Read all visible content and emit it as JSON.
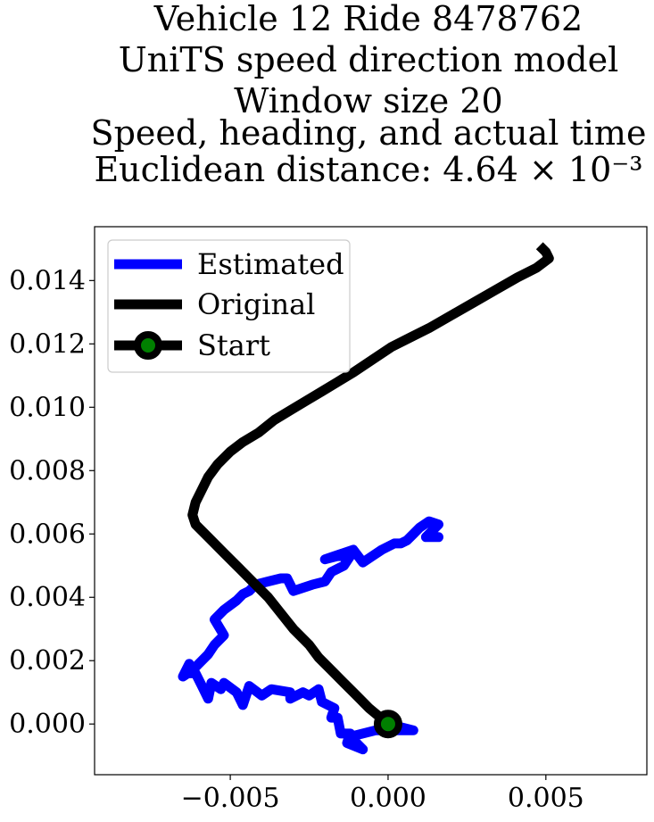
{
  "chart_data": {
    "type": "line",
    "title_lines": [
      "Vehicle 12 Ride 8478762",
      "UniTS speed direction model",
      "Window size 20",
      "Speed, heading, and actual time",
      "Euclidean distance: 4.64 × 10⁻³"
    ],
    "xlabel": "",
    "ylabel": "",
    "xlim": [
      -0.0093,
      0.0082
    ],
    "ylim": [
      -0.0016,
      0.0157
    ],
    "x_ticks": [
      -0.005,
      0.0,
      0.005
    ],
    "x_tick_labels": [
      "−0.005",
      "0.000",
      "0.005"
    ],
    "y_ticks": [
      0.0,
      0.002,
      0.004,
      0.006,
      0.008,
      0.01,
      0.012,
      0.014
    ],
    "y_tick_labels": [
      "0.000",
      "0.002",
      "0.004",
      "0.006",
      "0.008",
      "0.010",
      "0.012",
      "0.014"
    ],
    "grid": false,
    "legend_position": "top-left",
    "legend": [
      {
        "label": "Estimated",
        "color": "#0000ff",
        "marker": "none"
      },
      {
        "label": "Original",
        "color": "#000000",
        "marker": "none"
      },
      {
        "label": "Start",
        "color": "#000000",
        "marker": "circle",
        "marker_face": "#008000"
      }
    ],
    "series": [
      {
        "name": "Estimated",
        "color": "#0000ff",
        "points": [
          [
            0.0,
            0.0
          ],
          [
            0.0008,
            -0.0002
          ],
          [
            -0.0004,
            -0.0002
          ],
          [
            -0.0012,
            -0.0004
          ],
          [
            -0.0008,
            -0.0008
          ],
          [
            -0.0013,
            -0.0006
          ],
          [
            -0.0012,
            -0.0003
          ],
          [
            -0.0015,
            -0.0003
          ],
          [
            -0.0016,
            0.0002
          ],
          [
            -0.0018,
            0.0002
          ],
          [
            -0.0017,
            0.0005
          ],
          [
            -0.0021,
            0.0007
          ],
          [
            -0.0022,
            0.0011
          ],
          [
            -0.0025,
            0.0009
          ],
          [
            -0.0027,
            0.001
          ],
          [
            -0.0031,
            0.0008
          ],
          [
            -0.0031,
            0.001
          ],
          [
            -0.0037,
            0.0011
          ],
          [
            -0.004,
            0.0009
          ],
          [
            -0.0044,
            0.0012
          ],
          [
            -0.0046,
            0.0006
          ],
          [
            -0.0048,
            0.001
          ],
          [
            -0.0052,
            0.0013
          ],
          [
            -0.0053,
            0.0011
          ],
          [
            -0.0056,
            0.0013
          ],
          [
            -0.0057,
            0.0008
          ],
          [
            -0.0059,
            0.0012
          ],
          [
            -0.0061,
            0.0016
          ],
          [
            -0.0063,
            0.0016
          ],
          [
            -0.0063,
            0.0019
          ],
          [
            -0.0065,
            0.0015
          ],
          [
            -0.0062,
            0.0017
          ],
          [
            -0.006,
            0.0019
          ],
          [
            -0.0057,
            0.0022
          ],
          [
            -0.0055,
            0.0025
          ],
          [
            -0.0052,
            0.0028
          ],
          [
            -0.0055,
            0.0033
          ],
          [
            -0.0052,
            0.0036
          ],
          [
            -0.0048,
            0.0039
          ],
          [
            -0.0046,
            0.0041
          ],
          [
            -0.0044,
            0.0042
          ],
          [
            -0.0042,
            0.0044
          ],
          [
            -0.0038,
            0.0045
          ],
          [
            -0.0034,
            0.0046
          ],
          [
            -0.0032,
            0.0046
          ],
          [
            -0.0031,
            0.0044
          ],
          [
            -0.003,
            0.0042
          ],
          [
            -0.0027,
            0.0043
          ],
          [
            -0.0024,
            0.0044
          ],
          [
            -0.002,
            0.0045
          ],
          [
            -0.0018,
            0.0048
          ],
          [
            -0.0016,
            0.0049
          ],
          [
            -0.0014,
            0.005
          ],
          [
            -0.0012,
            0.0053
          ],
          [
            -0.0016,
            0.0053
          ],
          [
            -0.002,
            0.0052
          ],
          [
            -0.0017,
            0.0053
          ],
          [
            -0.0011,
            0.0055
          ],
          [
            -0.0008,
            0.0051
          ],
          [
            -0.0005,
            0.0053
          ],
          [
            -0.0002,
            0.0055
          ],
          [
            0.0002,
            0.0057
          ],
          [
            0.0004,
            0.0057
          ],
          [
            0.0006,
            0.0058
          ],
          [
            0.0008,
            0.006
          ],
          [
            0.001,
            0.0062
          ],
          [
            0.0013,
            0.0064
          ],
          [
            0.0016,
            0.0063
          ],
          [
            0.0012,
            0.0059
          ],
          [
            0.0016,
            0.0059
          ],
          [
            0.0012,
            0.0059
          ]
        ]
      },
      {
        "name": "Original",
        "color": "#000000",
        "points": [
          [
            0.0,
            0.0
          ],
          [
            -0.0006,
            0.0005
          ],
          [
            -0.001,
            0.0009
          ],
          [
            -0.0014,
            0.0013
          ],
          [
            -0.0018,
            0.0017
          ],
          [
            -0.0022,
            0.0021
          ],
          [
            -0.0025,
            0.0025
          ],
          [
            -0.003,
            0.003
          ],
          [
            -0.0034,
            0.0035
          ],
          [
            -0.0038,
            0.004
          ],
          [
            -0.0042,
            0.0044
          ],
          [
            -0.0047,
            0.0049
          ],
          [
            -0.0052,
            0.0054
          ],
          [
            -0.0057,
            0.0059
          ],
          [
            -0.0061,
            0.0063
          ],
          [
            -0.0062,
            0.0066
          ],
          [
            -0.0061,
            0.007
          ],
          [
            -0.0059,
            0.0074
          ],
          [
            -0.0057,
            0.0078
          ],
          [
            -0.0054,
            0.0082
          ],
          [
            -0.005,
            0.0086
          ],
          [
            -0.0046,
            0.0089
          ],
          [
            -0.0041,
            0.0092
          ],
          [
            -0.0036,
            0.0096
          ],
          [
            -0.0031,
            0.0099
          ],
          [
            -0.0026,
            0.0102
          ],
          [
            -0.0021,
            0.0105
          ],
          [
            -0.0016,
            0.0108
          ],
          [
            -0.0011,
            0.0111
          ],
          [
            -0.0005,
            0.0115
          ],
          [
            0.0001,
            0.0119
          ],
          [
            0.0007,
            0.0122
          ],
          [
            0.0013,
            0.0125
          ],
          [
            0.002,
            0.0129
          ],
          [
            0.0027,
            0.0133
          ],
          [
            0.0034,
            0.0137
          ],
          [
            0.0041,
            0.0141
          ],
          [
            0.0047,
            0.0144
          ],
          [
            0.0051,
            0.0147
          ],
          [
            0.005,
            0.0149
          ],
          [
            0.0048,
            0.0151
          ]
        ]
      }
    ],
    "start_marker": {
      "x": 0.0,
      "y": 0.0,
      "edge_color": "#000000",
      "face_color": "#008000"
    }
  }
}
